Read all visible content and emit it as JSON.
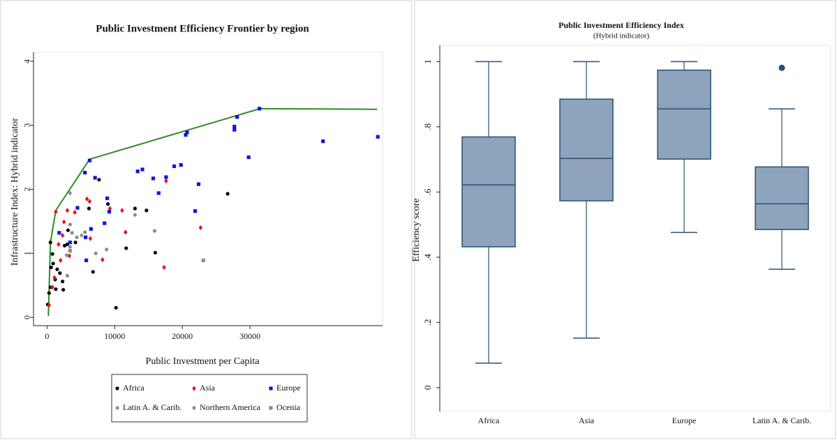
{
  "chart_data": [
    {
      "type": "scatter",
      "title": "Public Investment Efficiency Frontier by region",
      "x_label": "Public Investment per Capita",
      "y_label": "Infrastructure Index: Hybrid indicator",
      "xlim": [
        -2000,
        49600
      ],
      "ylim": [
        -0.13,
        4.14
      ],
      "xticks": [
        0,
        10000,
        20000,
        30000
      ],
      "yticks": [
        0,
        1,
        2,
        3,
        4
      ],
      "frontier": {
        "color": "#2e8b22",
        "x": [
          200,
          500,
          1300,
          6300,
          31500,
          48800
        ],
        "y": [
          0.02,
          1.17,
          1.67,
          2.47,
          3.26,
          3.25
        ]
      },
      "series": [
        {
          "name": "Africa",
          "color": "#000000",
          "marker": "circle",
          "x": [
            100,
            300,
            500,
            600,
            500,
            800,
            900,
            1200,
            1300,
            1500,
            1900,
            2300,
            2400,
            2600,
            3000,
            3100,
            4200,
            6200,
            6800,
            7700,
            9000,
            10200,
            11700,
            13000,
            14700,
            16000,
            26700
          ],
          "y": [
            0.2,
            0.38,
            0.47,
            0.78,
            1.17,
            0.99,
            0.84,
            0.59,
            0.44,
            0.75,
            0.69,
            0.56,
            0.43,
            1.12,
            1.14,
            1.36,
            1.17,
            1.7,
            0.71,
            2.15,
            1.77,
            0.15,
            1.08,
            1.7,
            1.67,
            1.01,
            1.93
          ]
        },
        {
          "name": "Asia",
          "color": "#e8141e",
          "marker": "diamond",
          "x": [
            300,
            800,
            1100,
            1300,
            1700,
            2000,
            2300,
            2500,
            3000,
            3300,
            4100,
            5900,
            6300,
            6400,
            8200,
            9300,
            11100,
            11600,
            17600,
            17300,
            22700
          ],
          "y": [
            0.19,
            0.47,
            0.62,
            1.65,
            1.14,
            0.89,
            1.28,
            1.49,
            1.67,
            0.96,
            1.64,
            1.85,
            1.81,
            1.23,
            0.9,
            1.7,
            1.67,
            1.33,
            2.13,
            0.78,
            1.4
          ]
        },
        {
          "name": "Europe",
          "color": "#1414e6",
          "marker": "square",
          "x": [
            48900,
            40800,
            31400,
            28100,
            27700,
            27700,
            29800,
            20700,
            20500,
            22400,
            21900,
            19800,
            18800,
            17600,
            15700,
            16500,
            14100,
            13400,
            6300,
            5600,
            7100,
            8900,
            9200,
            8500,
            6500,
            5700,
            5800,
            4500,
            3400,
            1800
          ],
          "y": [
            2.82,
            2.75,
            3.26,
            3.13,
            2.98,
            2.93,
            2.5,
            2.89,
            2.85,
            2.08,
            1.66,
            2.38,
            2.36,
            2.19,
            2.17,
            1.94,
            2.31,
            2.28,
            2.45,
            2.26,
            2.18,
            1.86,
            1.65,
            1.47,
            1.38,
            1.25,
            0.89,
            1.71,
            1.17,
            1.32
          ]
        },
        {
          "name": "Latin A. & Carib.",
          "color": "#8c8c8c",
          "marker": "circle",
          "x": [
            2900,
            3400,
            3400,
            3700,
            3000,
            4400,
            5600,
            7200,
            8800,
            13000,
            15900
          ],
          "y": [
            0.97,
            1.1,
            1.45,
            1.32,
            0.65,
            1.25,
            1.33,
            1.0,
            1.06,
            1.6,
            1.35
          ]
        },
        {
          "name": "Northern America",
          "color": "#8c8c8c",
          "marker": "diamond",
          "x": [
            3400,
            5100
          ],
          "y": [
            1.94,
            1.28
          ]
        },
        {
          "name": "Ocenia",
          "color": "#8c8c8c",
          "marker": "square",
          "x": [
            23100,
            3400
          ],
          "y": [
            0.89,
            1.04
          ]
        }
      ]
    },
    {
      "type": "box",
      "title": "Public Investment Efficiency Index",
      "subtitle": "(Hybrid indicator)",
      "y_label": "Efficiency score",
      "ylim": [
        -0.073,
        1.05
      ],
      "yticks": [
        0,
        {
          "value": 0.2,
          "label": ".2"
        },
        {
          "value": 0.4,
          "label": ".4"
        },
        {
          "value": 0.6,
          "label": ".6"
        },
        {
          "value": 0.8,
          "label": ".8"
        },
        1
      ],
      "color": "#8ea4bc",
      "edge_color": "#264f74",
      "categories": [
        "Africa",
        "Asia",
        "Europe",
        "Latin A. & Carib."
      ],
      "min": [
        0.075,
        0.152,
        0.476,
        0.363
      ],
      "q1": [
        0.432,
        0.573,
        0.701,
        0.485
      ],
      "median": [
        0.622,
        0.703,
        0.855,
        0.564
      ],
      "q3": [
        0.769,
        0.885,
        0.974,
        0.677
      ],
      "max": [
        1.0,
        1.0,
        1.0,
        0.855
      ],
      "outliers": [
        [],
        [],
        [],
        [
          0.981
        ]
      ]
    }
  ]
}
